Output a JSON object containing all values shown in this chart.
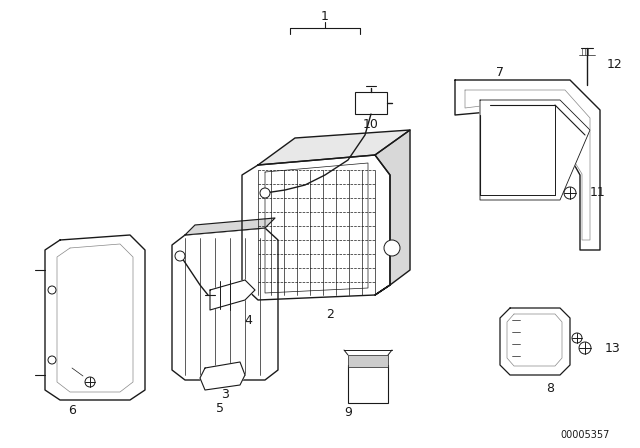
{
  "bg_color": "#ffffff",
  "line_color": "#1a1a1a",
  "doc_number": "00005357",
  "fig_w": 6.4,
  "fig_h": 4.48,
  "dpi": 100
}
